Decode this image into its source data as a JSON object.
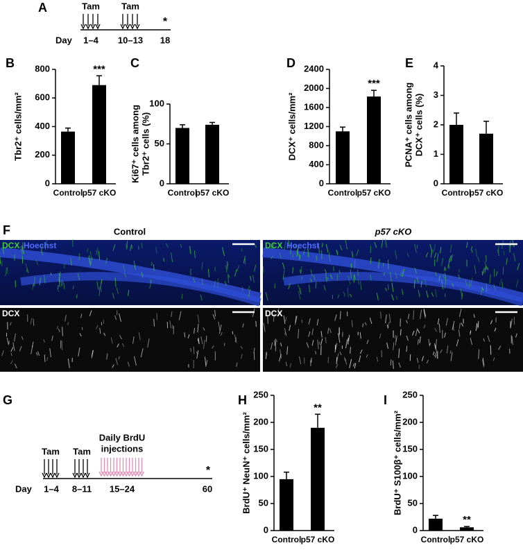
{
  "panel_labels": [
    "A",
    "B",
    "C",
    "D",
    "E",
    "F",
    "G",
    "H",
    "I"
  ],
  "timeline_a": {
    "tam": [
      "Tam",
      "Tam"
    ],
    "day": "Day",
    "days": [
      "1–4",
      "10–13",
      "18"
    ],
    "end_mark": "*"
  },
  "panel_f": {
    "headers": [
      "Control",
      "p57 cKO"
    ],
    "stain_green": "DCX",
    "stain_blue": "Hoechst",
    "stain_gray": "DCX"
  },
  "timeline_g": {
    "tam": [
      "Tam",
      "Tam"
    ],
    "brdu": [
      "Daily BrdU",
      "injections"
    ],
    "day": "Day",
    "days": [
      "1–4",
      "8–11",
      "15–24",
      "60"
    ],
    "end_mark": "*"
  },
  "chart_data": [
    {
      "type": "bar",
      "ylabel": [
        "Tbr2⁺ cells/mm²"
      ],
      "categories": [
        "Control",
        "p57 cKO"
      ],
      "values": [
        365,
        690
      ],
      "errors": [
        25,
        65
      ],
      "annotations": [
        null,
        "***"
      ],
      "color": "#000000",
      "ylim": [
        0,
        800
      ],
      "yticks": [
        0,
        200,
        400,
        600,
        800
      ]
    },
    {
      "type": "bar",
      "ylabel": [
        "Ki67⁺ cells among",
        "Tbr2⁺ cells (%)"
      ],
      "categories": [
        "Control",
        "p57 cKO"
      ],
      "values": [
        70,
        74
      ],
      "errors": [
        4,
        3
      ],
      "annotations": [
        null,
        null
      ],
      "color": "#000000",
      "ylim": [
        0,
        100
      ],
      "yticks": [
        0,
        50,
        100
      ]
    },
    {
      "type": "bar",
      "ylabel": [
        "DCX⁺ cells/mm²"
      ],
      "categories": [
        "Control",
        "p57 cKO"
      ],
      "values": [
        1100,
        1830
      ],
      "errors": [
        90,
        130
      ],
      "annotations": [
        null,
        "***"
      ],
      "color": "#000000",
      "ylim": [
        0,
        2400
      ],
      "yticks": [
        0,
        400,
        800,
        1200,
        1600,
        2000,
        2400
      ]
    },
    {
      "type": "bar",
      "ylabel": [
        "PCNA⁺ cells among",
        "DCX⁺ cells (%)"
      ],
      "categories": [
        "Control",
        "p57 cKO"
      ],
      "values": [
        2.0,
        1.7
      ],
      "errors": [
        0.4,
        0.42
      ],
      "annotations": [
        null,
        null
      ],
      "color": "#000000",
      "ylim": [
        0,
        4
      ],
      "yticks": [
        0,
        1,
        2,
        3,
        4
      ]
    },
    {
      "type": "bar",
      "ylabel": [
        "BrdU⁺ NeuN⁺ cells/mm²"
      ],
      "categories": [
        "Control",
        "p57 cKO"
      ],
      "values": [
        95,
        190
      ],
      "errors": [
        13,
        25
      ],
      "annotations": [
        null,
        "**"
      ],
      "color": "#000000",
      "ylim": [
        0,
        250
      ],
      "yticks": [
        0,
        50,
        100,
        150,
        200,
        250
      ]
    },
    {
      "type": "bar",
      "ylabel": [
        "BrdU⁺ S100β⁺ cells/mm²"
      ],
      "categories": [
        "Control",
        "p57 cKO"
      ],
      "values": [
        22,
        6
      ],
      "errors": [
        6,
        1.5
      ],
      "annotations": [
        null,
        "**"
      ],
      "color": "#000000",
      "ylim": [
        0,
        250
      ],
      "yticks": [
        0,
        50,
        100,
        150,
        200,
        250
      ]
    }
  ]
}
